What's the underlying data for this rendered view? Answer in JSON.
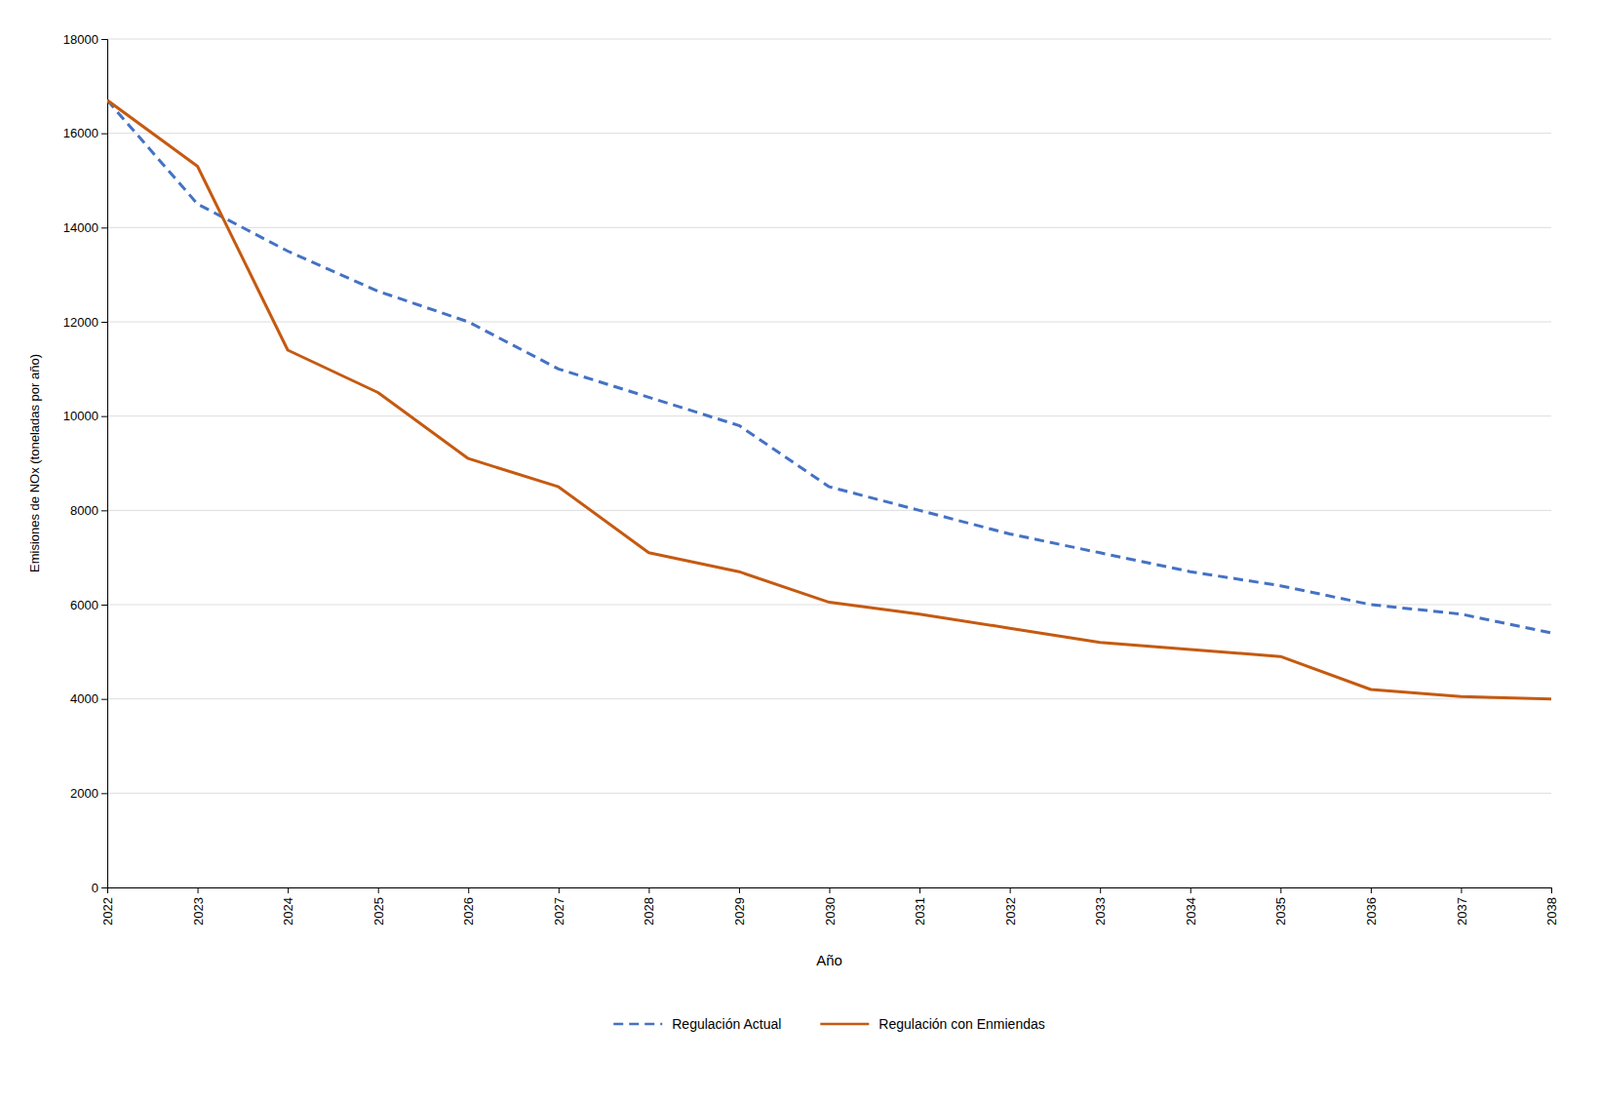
{
  "chart_data": {
    "type": "line",
    "xlabel": "Año",
    "ylabel": "Emisiones de NOx (toneladas por año)",
    "x": [
      2022,
      2023,
      2024,
      2025,
      2026,
      2027,
      2028,
      2029,
      2030,
      2031,
      2032,
      2033,
      2034,
      2035,
      2036,
      2037,
      2038
    ],
    "series": [
      {
        "name": "Regulación Actual",
        "color": "#4472C4",
        "line_style": "dashed",
        "values": [
          16700,
          14500,
          13500,
          12650,
          12000,
          11000,
          10400,
          9800,
          8500,
          8000,
          7500,
          7100,
          6700,
          6400,
          6000,
          5800,
          5400
        ]
      },
      {
        "name": "Regulación con Enmiendas",
        "color": "#C55A11",
        "line_style": "solid",
        "values": [
          16700,
          15300,
          11400,
          10500,
          9100,
          8500,
          7100,
          6700,
          6050,
          5800,
          5500,
          5200,
          5050,
          4900,
          4200,
          4050,
          4000
        ]
      }
    ],
    "xlim": [
      2022,
      2038
    ],
    "xticks": [
      2022,
      2023,
      2024,
      2025,
      2026,
      2027,
      2028,
      2029,
      2030,
      2031,
      2032,
      2033,
      2034,
      2035,
      2036,
      2037,
      2038
    ],
    "ylim": [
      0,
      18000
    ],
    "yticks": [
      0,
      2000,
      4000,
      6000,
      8000,
      10000,
      12000,
      14000,
      16000,
      18000
    ],
    "grid": "y",
    "legend": "bottom"
  }
}
